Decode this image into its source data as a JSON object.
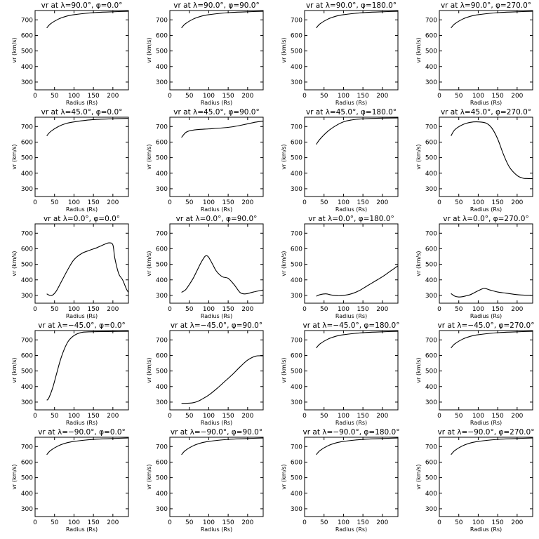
{
  "chart_data": [
    {
      "type": "line",
      "title": "vr at λ=90.0°, φ=0.0°",
      "xlabel": "Radius (Rs)",
      "ylabel": "vr (km/s)",
      "xlim": [
        0,
        240
      ],
      "ylim": [
        250,
        760
      ],
      "xticks": [
        0,
        50,
        100,
        150,
        200
      ],
      "yticks": [
        300,
        400,
        500,
        600,
        700
      ],
      "series": [
        {
          "x": [
            30,
            40,
            60,
            80,
            100,
            130,
            160,
            200,
            240
          ],
          "y": [
            648,
            675,
            705,
            723,
            733,
            742,
            748,
            752,
            755
          ]
        }
      ]
    },
    {
      "type": "line",
      "title": "vr at λ=90.0°, φ=90.0°",
      "xlabel": "Radius (Rs)",
      "ylabel": "vr (km/s)",
      "xlim": [
        0,
        240
      ],
      "ylim": [
        250,
        760
      ],
      "xticks": [
        0,
        50,
        100,
        150,
        200
      ],
      "yticks": [
        300,
        400,
        500,
        600,
        700
      ],
      "series": [
        {
          "x": [
            30,
            40,
            60,
            80,
            100,
            130,
            160,
            200,
            240
          ],
          "y": [
            648,
            675,
            705,
            723,
            733,
            742,
            748,
            752,
            755
          ]
        }
      ]
    },
    {
      "type": "line",
      "title": "vr at λ=90.0°, φ=180.0°",
      "xlabel": "Radius (Rs)",
      "ylabel": "vr (km/s)",
      "xlim": [
        0,
        240
      ],
      "ylim": [
        250,
        760
      ],
      "xticks": [
        0,
        50,
        100,
        150,
        200
      ],
      "yticks": [
        300,
        400,
        500,
        600,
        700
      ],
      "series": [
        {
          "x": [
            30,
            40,
            60,
            80,
            100,
            130,
            160,
            200,
            240
          ],
          "y": [
            648,
            675,
            705,
            723,
            733,
            742,
            748,
            752,
            755
          ]
        }
      ]
    },
    {
      "type": "line",
      "title": "vr at λ=90.0°, φ=270.0°",
      "xlabel": "Radius (Rs)",
      "ylabel": "vr (km/s)",
      "xlim": [
        0,
        240
      ],
      "ylim": [
        250,
        760
      ],
      "xticks": [
        0,
        50,
        100,
        150,
        200
      ],
      "yticks": [
        300,
        400,
        500,
        600,
        700
      ],
      "series": [
        {
          "x": [
            30,
            40,
            60,
            80,
            100,
            130,
            160,
            200,
            240
          ],
          "y": [
            648,
            675,
            705,
            723,
            733,
            742,
            748,
            752,
            755
          ]
        }
      ]
    },
    {
      "type": "line",
      "title": "vr at λ=45.0°, φ=0.0°",
      "xlabel": "Radius (Rs)",
      "ylabel": "vr (km/s)",
      "xlim": [
        0,
        240
      ],
      "ylim": [
        250,
        760
      ],
      "xticks": [
        0,
        50,
        100,
        150,
        200
      ],
      "yticks": [
        300,
        400,
        500,
        600,
        700
      ],
      "series": [
        {
          "x": [
            30,
            40,
            60,
            80,
            100,
            130,
            160,
            200,
            240
          ],
          "y": [
            640,
            668,
            700,
            720,
            730,
            740,
            746,
            750,
            753
          ]
        }
      ]
    },
    {
      "type": "line",
      "title": "vr at λ=45.0°, φ=90.0°",
      "xlabel": "Radius (Rs)",
      "ylabel": "vr (km/s)",
      "xlim": [
        0,
        240
      ],
      "ylim": [
        250,
        760
      ],
      "xticks": [
        0,
        50,
        100,
        150,
        200
      ],
      "yticks": [
        300,
        400,
        500,
        600,
        700
      ],
      "series": [
        {
          "x": [
            30,
            40,
            50,
            70,
            100,
            130,
            160,
            190,
            220,
            240
          ],
          "y": [
            630,
            660,
            672,
            680,
            685,
            690,
            698,
            712,
            728,
            735
          ]
        }
      ]
    },
    {
      "type": "line",
      "title": "vr at λ=45.0°, φ=180.0°",
      "xlabel": "Radius (Rs)",
      "ylabel": "vr (km/s)",
      "xlim": [
        0,
        240
      ],
      "ylim": [
        250,
        760
      ],
      "xticks": [
        0,
        50,
        100,
        150,
        200
      ],
      "yticks": [
        300,
        400,
        500,
        600,
        700
      ],
      "series": [
        {
          "x": [
            30,
            40,
            60,
            80,
            100,
            120,
            140,
            170,
            200,
            240
          ],
          "y": [
            585,
            620,
            670,
            705,
            730,
            742,
            748,
            752,
            754,
            755
          ]
        }
      ]
    },
    {
      "type": "line",
      "title": "vr at λ=45.0°, φ=270.0°",
      "xlabel": "Radius (Rs)",
      "ylabel": "vr (km/s)",
      "xlim": [
        0,
        240
      ],
      "ylim": [
        250,
        760
      ],
      "xticks": [
        0,
        50,
        100,
        150,
        200
      ],
      "yticks": [
        300,
        400,
        500,
        600,
        700
      ],
      "series": [
        {
          "x": [
            30,
            40,
            60,
            80,
            100,
            120,
            135,
            150,
            165,
            180,
            200,
            215,
            225,
            240
          ],
          "y": [
            640,
            680,
            712,
            727,
            730,
            722,
            690,
            620,
            520,
            440,
            385,
            368,
            366,
            365
          ]
        }
      ]
    },
    {
      "type": "line",
      "title": "vr at λ=0.0°, φ=0.0°",
      "xlabel": "Radius (Rs)",
      "ylabel": "vr (km/s)",
      "xlim": [
        0,
        240
      ],
      "ylim": [
        250,
        760
      ],
      "xticks": [
        0,
        50,
        100,
        150,
        200
      ],
      "yticks": [
        300,
        400,
        500,
        600,
        700
      ],
      "series": [
        {
          "x": [
            30,
            38,
            45,
            55,
            70,
            85,
            100,
            120,
            140,
            160,
            180,
            190,
            200,
            205,
            215,
            225,
            235,
            240
          ],
          "y": [
            310,
            300,
            302,
            330,
            400,
            470,
            530,
            570,
            590,
            608,
            630,
            638,
            625,
            540,
            440,
            400,
            340,
            320
          ]
        }
      ]
    },
    {
      "type": "line",
      "title": "vr at λ=0.0°, φ=90.0°",
      "xlabel": "Radius (Rs)",
      "ylabel": "vr (km/s)",
      "xlim": [
        0,
        240
      ],
      "ylim": [
        250,
        760
      ],
      "xticks": [
        0,
        50,
        100,
        150,
        200
      ],
      "yticks": [
        300,
        400,
        500,
        600,
        700
      ],
      "series": [
        {
          "x": [
            30,
            40,
            50,
            60,
            70,
            80,
            90,
            95,
            100,
            110,
            120,
            135,
            150,
            165,
            180,
            190,
            200,
            215,
            240
          ],
          "y": [
            320,
            335,
            370,
            410,
            460,
            510,
            550,
            555,
            545,
            500,
            455,
            420,
            410,
            370,
            320,
            310,
            312,
            322,
            335
          ]
        }
      ]
    },
    {
      "type": "line",
      "title": "vr at λ=0.0°, φ=180.0°",
      "xlabel": "Radius (Rs)",
      "ylabel": "vr (km/s)",
      "xlim": [
        0,
        240
      ],
      "ylim": [
        250,
        760
      ],
      "xticks": [
        0,
        50,
        100,
        150,
        200
      ],
      "yticks": [
        300,
        400,
        500,
        600,
        700
      ],
      "series": [
        {
          "x": [
            30,
            40,
            55,
            70,
            85,
            100,
            120,
            140,
            160,
            180,
            200,
            220,
            240
          ],
          "y": [
            295,
            305,
            310,
            302,
            298,
            300,
            310,
            330,
            360,
            390,
            420,
            455,
            490
          ]
        }
      ]
    },
    {
      "type": "line",
      "title": "vr at λ=0.0°, φ=270.0°",
      "xlabel": "Radius (Rs)",
      "ylabel": "vr (km/s)",
      "xlim": [
        0,
        240
      ],
      "ylim": [
        250,
        760
      ],
      "xticks": [
        0,
        50,
        100,
        150,
        200
      ],
      "yticks": [
        300,
        400,
        500,
        600,
        700
      ],
      "series": [
        {
          "x": [
            30,
            40,
            50,
            60,
            70,
            80,
            100,
            115,
            130,
            150,
            170,
            190,
            215,
            240
          ],
          "y": [
            312,
            295,
            290,
            292,
            298,
            305,
            330,
            345,
            335,
            322,
            315,
            308,
            302,
            300
          ]
        }
      ]
    },
    {
      "type": "line",
      "title": "vr at λ=−45.0°, φ=0.0°",
      "xlabel": "Radius (Rs)",
      "ylabel": "vr (km/s)",
      "xlim": [
        0,
        240
      ],
      "ylim": [
        250,
        760
      ],
      "xticks": [
        0,
        50,
        100,
        150,
        200
      ],
      "yticks": [
        300,
        400,
        500,
        600,
        700
      ],
      "series": [
        {
          "x": [
            30,
            35,
            45,
            55,
            65,
            75,
            85,
            95,
            105,
            115,
            125,
            140,
            160,
            200,
            240
          ],
          "y": [
            312,
            325,
            390,
            480,
            570,
            640,
            690,
            718,
            735,
            745,
            750,
            752,
            753,
            754,
            755
          ]
        }
      ]
    },
    {
      "type": "line",
      "title": "vr at λ=−45.0°, φ=90.0°",
      "xlabel": "Radius (Rs)",
      "ylabel": "vr (km/s)",
      "xlim": [
        0,
        240
      ],
      "ylim": [
        250,
        760
      ],
      "xticks": [
        0,
        50,
        100,
        150,
        200
      ],
      "yticks": [
        300,
        400,
        500,
        600,
        700
      ],
      "series": [
        {
          "x": [
            30,
            40,
            50,
            60,
            70,
            80,
            100,
            120,
            140,
            160,
            180,
            200,
            220,
            240
          ],
          "y": [
            292,
            292,
            293,
            296,
            303,
            315,
            345,
            385,
            430,
            475,
            525,
            570,
            595,
            598
          ]
        }
      ]
    },
    {
      "type": "line",
      "title": "vr at λ=−45.0°, φ=180.0°",
      "xlabel": "Radius (Rs)",
      "ylabel": "vr (km/s)",
      "xlim": [
        0,
        240
      ],
      "ylim": [
        250,
        760
      ],
      "xticks": [
        0,
        50,
        100,
        150,
        200
      ],
      "yticks": [
        300,
        400,
        500,
        600,
        700
      ],
      "series": [
        {
          "x": [
            30,
            40,
            60,
            80,
            100,
            130,
            160,
            200,
            240
          ],
          "y": [
            648,
            675,
            705,
            723,
            733,
            742,
            748,
            752,
            755
          ]
        }
      ]
    },
    {
      "type": "line",
      "title": "vr at λ=−45.0°, φ=270.0°",
      "xlabel": "Radius (Rs)",
      "ylabel": "vr (km/s)",
      "xlim": [
        0,
        240
      ],
      "ylim": [
        250,
        760
      ],
      "xticks": [
        0,
        50,
        100,
        150,
        200
      ],
      "yticks": [
        300,
        400,
        500,
        600,
        700
      ],
      "series": [
        {
          "x": [
            30,
            40,
            60,
            80,
            100,
            130,
            160,
            200,
            240
          ],
          "y": [
            648,
            675,
            705,
            723,
            733,
            742,
            748,
            752,
            755
          ]
        }
      ]
    },
    {
      "type": "line",
      "title": "vr at λ=−90.0°, φ=0.0°",
      "xlabel": "Radius (Rs)",
      "ylabel": "vr (km/s)",
      "xlim": [
        0,
        240
      ],
      "ylim": [
        250,
        760
      ],
      "xticks": [
        0,
        50,
        100,
        150,
        200
      ],
      "yticks": [
        300,
        400,
        500,
        600,
        700
      ],
      "series": [
        {
          "x": [
            30,
            40,
            60,
            80,
            100,
            130,
            160,
            200,
            240
          ],
          "y": [
            648,
            675,
            705,
            723,
            733,
            742,
            748,
            752,
            755
          ]
        }
      ]
    },
    {
      "type": "line",
      "title": "vr at λ=−90.0°, φ=90.0°",
      "xlabel": "Radius (Rs)",
      "ylabel": "vr (km/s)",
      "xlim": [
        0,
        240
      ],
      "ylim": [
        250,
        760
      ],
      "xticks": [
        0,
        50,
        100,
        150,
        200
      ],
      "yticks": [
        300,
        400,
        500,
        600,
        700
      ],
      "series": [
        {
          "x": [
            30,
            40,
            60,
            80,
            100,
            130,
            160,
            200,
            240
          ],
          "y": [
            648,
            675,
            705,
            723,
            733,
            742,
            748,
            752,
            755
          ]
        }
      ]
    },
    {
      "type": "line",
      "title": "vr at λ=−90.0°, φ=180.0°",
      "xlabel": "Radius (Rs)",
      "ylabel": "vr (km/s)",
      "xlim": [
        0,
        240
      ],
      "ylim": [
        250,
        760
      ],
      "xticks": [
        0,
        50,
        100,
        150,
        200
      ],
      "yticks": [
        300,
        400,
        500,
        600,
        700
      ],
      "series": [
        {
          "x": [
            30,
            40,
            60,
            80,
            100,
            130,
            160,
            200,
            240
          ],
          "y": [
            648,
            675,
            705,
            723,
            733,
            742,
            748,
            752,
            755
          ]
        }
      ]
    },
    {
      "type": "line",
      "title": "vr at λ=−90.0°, φ=270.0°",
      "xlabel": "Radius (Rs)",
      "ylabel": "vr (km/s)",
      "xlim": [
        0,
        240
      ],
      "ylim": [
        250,
        760
      ],
      "xticks": [
        0,
        50,
        100,
        150,
        200
      ],
      "yticks": [
        300,
        400,
        500,
        600,
        700
      ],
      "series": [
        {
          "x": [
            30,
            40,
            60,
            80,
            100,
            130,
            160,
            200,
            240
          ],
          "y": [
            648,
            675,
            705,
            723,
            733,
            742,
            748,
            752,
            755
          ]
        }
      ]
    }
  ]
}
